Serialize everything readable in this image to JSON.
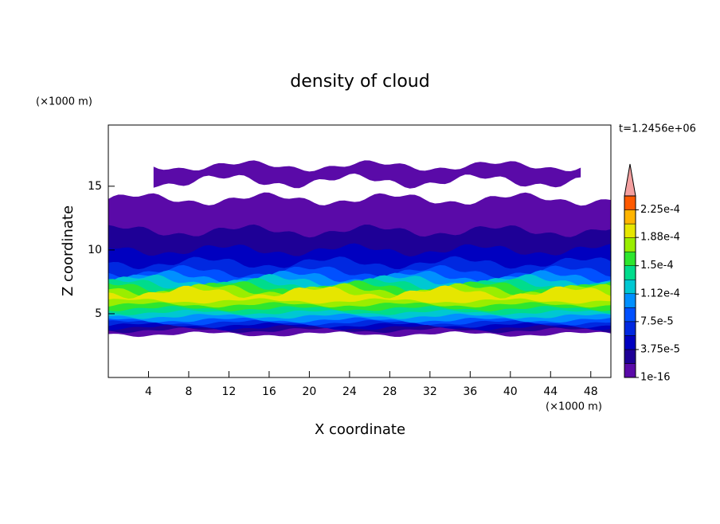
{
  "chart_data": {
    "type": "contour",
    "title": "density of cloud",
    "x_label": "X coordinate",
    "y_label": "Z coordinate",
    "x_unit": "(×1000 m)",
    "y_unit": "(×1000 m)",
    "time_label": "t=1.2456e+06",
    "xlim": [
      0,
      50
    ],
    "ylim": [
      0,
      19.8
    ],
    "xticks": [
      4,
      8,
      12,
      16,
      20,
      24,
      28,
      32,
      36,
      40,
      44,
      48
    ],
    "yticks": [
      5,
      10,
      15
    ],
    "colorbar": {
      "clim": [
        1e-16,
        0.00024375
      ],
      "levels": [
        {
          "value": 1e-16,
          "label": "1e-16"
        },
        {
          "value": 3.75e-05,
          "label": "3.75e-5"
        },
        {
          "value": 7.5e-05,
          "label": "7.5e-5"
        },
        {
          "value": 0.000112,
          "label": "1.12e-4"
        },
        {
          "value": 0.00015,
          "label": "1.5e-4"
        },
        {
          "value": 0.000188,
          "label": "1.88e-4"
        },
        {
          "value": 0.000225,
          "label": "2.25e-4"
        }
      ],
      "colors": [
        "#5a0aa8",
        "#1e0096",
        "#0000c0",
        "#0028e0",
        "#0050ff",
        "#0090ff",
        "#00c8d2",
        "#00dc8c",
        "#2ee62e",
        "#9aee00",
        "#e6e600",
        "#ffb400",
        "#ff5a00"
      ],
      "extend_color": "#f4a0a0"
    }
  }
}
